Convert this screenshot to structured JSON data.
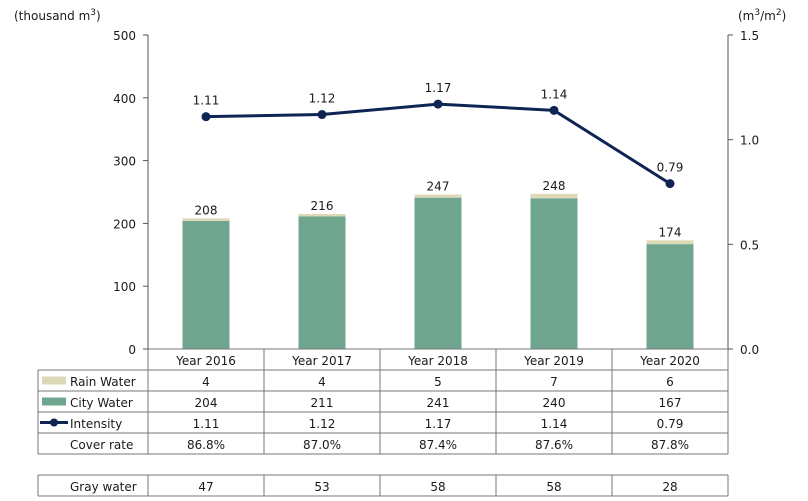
{
  "chart_data": {
    "type": "bar",
    "stacked": true,
    "categories": [
      "Year 2016",
      "Year 2017",
      "Year 2018",
      "Year 2019",
      "Year 2020"
    ],
    "y_left": {
      "label": "(thousand m",
      "label_sup": "3",
      "label_end": ")",
      "ylim": [
        0,
        500
      ],
      "ticks": [
        "0",
        "100",
        "200",
        "300",
        "400",
        "500"
      ]
    },
    "y_right": {
      "label": "(m",
      "label_sup1": "3",
      "label_mid": "/m",
      "label_sup2": "2",
      "label_end": ")",
      "ylim": [
        0.0,
        1.5
      ],
      "ticks": [
        "0.0",
        "0.5",
        "1.0",
        "1.5"
      ]
    },
    "series": [
      {
        "name": "City Water",
        "kind": "bar",
        "axis": "left",
        "color": "#6fa58f",
        "values": [
          204,
          211,
          241,
          240,
          167
        ]
      },
      {
        "name": "Rain Water",
        "kind": "bar",
        "axis": "left",
        "color": "#ddd9b7",
        "values": [
          4,
          4,
          5,
          7,
          6
        ]
      },
      {
        "name": "Intensity",
        "kind": "line",
        "axis": "right",
        "color": "#0e2554",
        "values": [
          1.11,
          1.12,
          1.17,
          1.14,
          0.79
        ],
        "labels": [
          "1.11",
          "1.12",
          "1.17",
          "1.14",
          "0.79"
        ]
      }
    ],
    "total_labels": [
      "208",
      "216",
      "247",
      "248",
      "174"
    ],
    "grid": false,
    "table": {
      "rows": [
        {
          "label": "Rain Water",
          "legend": "rain",
          "values": [
            "4",
            "4",
            "5",
            "7",
            "6"
          ]
        },
        {
          "label": "City Water",
          "legend": "city",
          "values": [
            "204",
            "211",
            "241",
            "240",
            "167"
          ]
        },
        {
          "label": "Intensity",
          "legend": "line",
          "values": [
            "1.11",
            "1.12",
            "1.17",
            "1.14",
            "0.79"
          ]
        },
        {
          "label": "Cover rate",
          "legend": "",
          "values": [
            "86.8%",
            "87.0%",
            "87.4%",
            "87.6%",
            "87.8%"
          ]
        }
      ],
      "extra_row": {
        "label": "Gray water",
        "values": [
          "47",
          "53",
          "58",
          "58",
          "28"
        ]
      }
    }
  }
}
